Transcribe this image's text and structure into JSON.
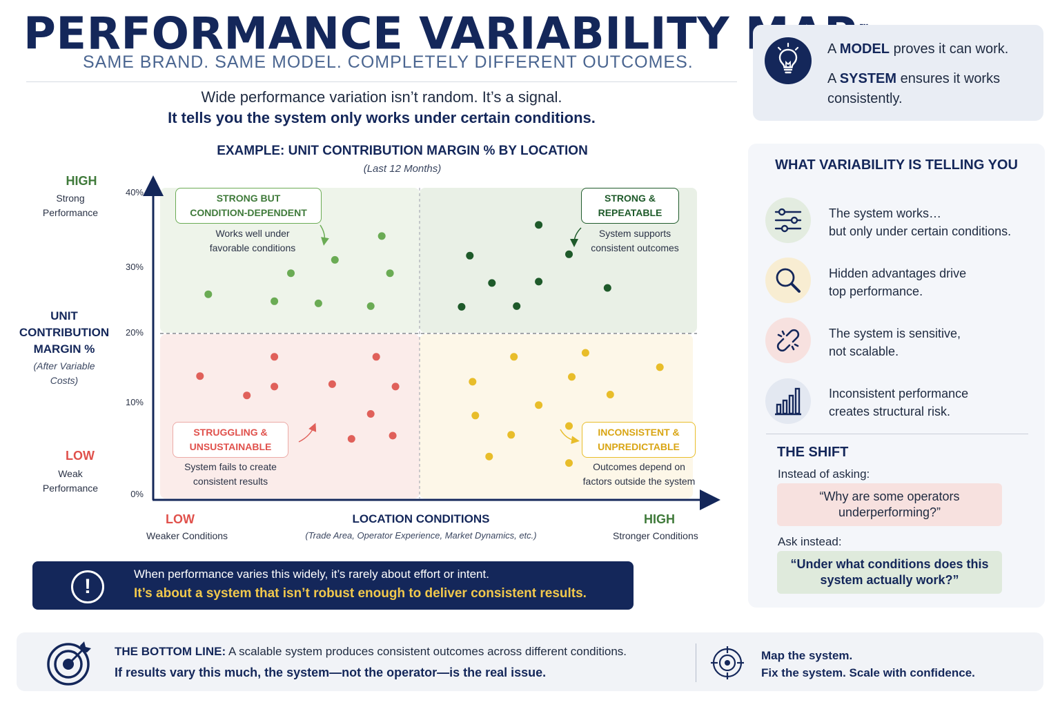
{
  "header": {
    "title": "PERFORMANCE VARIABILITY MAP",
    "tm": "™",
    "subtitle": "SAME BRAND. SAME MODEL. COMPLETELY DIFFERENT OUTCOMES.",
    "intro_line1": "Wide performance variation isn’t random. It’s a signal.",
    "intro_line2": "It tells you the system only works under certain conditions."
  },
  "model_box": {
    "icon": "lightbulb-icon",
    "line1_prefix": "A ",
    "line1_bold": "MODEL",
    "line1_suffix": " proves it can work.",
    "line2_prefix": "A ",
    "line2_bold": "SYSTEM",
    "line2_suffix": " ensures it works",
    "line2_cont": "consistently."
  },
  "y_axis": {
    "high_label": "HIGH",
    "high_sub1": "Strong",
    "high_sub2": "Performance",
    "low_label": "LOW",
    "low_sub1": "Weak",
    "low_sub2": "Performance",
    "main1": "UNIT",
    "main2": "CONTRIBUTION",
    "main3": "MARGIN %",
    "main_sub1": "(After Variable",
    "main_sub2": "Costs)"
  },
  "x_axis": {
    "low_label": "LOW",
    "low_sub": "Weaker Conditions",
    "main": "LOCATION CONDITIONS",
    "main_sub": "(Trade Area, Operator Experience, Market Dynamics, etc.)",
    "high_label": "HIGH",
    "high_sub": "Stronger Conditions"
  },
  "quadrants": {
    "top_left": {
      "label1": "STRONG BUT",
      "label2": "CONDITION-DEPENDENT",
      "desc1": "Works well under",
      "desc2": "favorable conditions"
    },
    "top_right": {
      "label1": "STRONG &",
      "label2": "REPEATABLE",
      "desc1": "System supports",
      "desc2": "consistent outcomes"
    },
    "bottom_left": {
      "label1": "STRUGGLING &",
      "label2": "UNSUSTAINABLE",
      "desc1": "System fails to create",
      "desc2": "consistent results"
    },
    "bottom_right": {
      "label1": "INCONSISTENT &",
      "label2": "UNPREDICTABLE",
      "desc1": "Outcomes depend on",
      "desc2": "factors outside the system"
    }
  },
  "chart_data": {
    "type": "scatter",
    "title": "EXAMPLE: UNIT CONTRIBUTION MARGIN % BY LOCATION",
    "subtitle": "(Last 12 Months)",
    "xlabel": "LOCATION CONDITIONS",
    "ylabel": "UNIT CONTRIBUTION MARGIN %",
    "ylim": [
      0,
      40
    ],
    "xlim": [
      0,
      100
    ],
    "y_ticks": [
      "40%",
      "30%",
      "20%",
      "10%",
      "0%"
    ],
    "y_tick_values": [
      40,
      30,
      20,
      10,
      0
    ],
    "y_divider": 20,
    "x_divider": 50,
    "grid": false,
    "series": [
      {
        "color": "#6aab54",
        "points": [
          [
            10,
            25.6
          ],
          [
            22,
            24.6
          ],
          [
            25,
            28.6
          ],
          [
            30,
            24.3
          ],
          [
            33,
            30.5
          ],
          [
            39.5,
            23.9
          ],
          [
            41.5,
            33.9
          ],
          [
            43,
            28.6
          ]
        ]
      },
      {
        "color": "#1e5a2a",
        "points": [
          [
            56,
            23.8
          ],
          [
            57.5,
            31.1
          ],
          [
            61.5,
            27.2
          ],
          [
            66,
            23.9
          ],
          [
            70,
            35.5
          ],
          [
            70,
            27.4
          ],
          [
            75.5,
            31.3
          ],
          [
            82.5,
            26.5
          ]
        ]
      },
      {
        "color": "#e0605a",
        "points": [
          [
            8.5,
            14.7
          ],
          [
            17,
            12.3
          ],
          [
            22,
            13.4
          ],
          [
            22,
            17.1
          ],
          [
            32.5,
            13.7
          ],
          [
            36,
            6.9
          ],
          [
            39.5,
            10.0
          ],
          [
            40.5,
            17.1
          ],
          [
            43.5,
            7.3
          ],
          [
            44,
            13.4
          ]
        ]
      },
      {
        "color": "#e8bd2a",
        "points": [
          [
            58,
            14.0
          ],
          [
            58.5,
            9.8
          ],
          [
            61,
            4.7
          ],
          [
            65,
            7.4
          ],
          [
            65.5,
            17.1
          ],
          [
            70,
            11.1
          ],
          [
            75.5,
            8.5
          ],
          [
            75.5,
            3.9
          ],
          [
            76,
            14.6
          ],
          [
            78.5,
            17.6
          ],
          [
            83,
            12.4
          ],
          [
            92,
            15.8
          ]
        ]
      }
    ]
  },
  "banner": {
    "icon": "exclamation-icon",
    "line1": "When performance varies this widely, it’s rarely about effort or intent.",
    "line2": "It’s about a system that isn’t robust enough to deliver consistent results."
  },
  "right_panel": {
    "title": "WHAT VARIABILITY IS TELLING YOU",
    "items": [
      {
        "icon": "sliders-icon",
        "line1": "The system works…",
        "line2": "but only under certain conditions.",
        "bg": "#e3ece0",
        "color": "#14275a"
      },
      {
        "icon": "magnifier-icon",
        "line1": "Hidden advantages drive",
        "line2": "top performance.",
        "bg": "#f8edd2",
        "color": "#14275a"
      },
      {
        "icon": "broken-link-icon",
        "line1": "The system is sensitive,",
        "line2": "not scalable.",
        "bg": "#f7e1df",
        "color": "#14275a"
      },
      {
        "icon": "bar-chart-icon",
        "line1": "Inconsistent performance",
        "line2": "creates structural risk.",
        "bg": "#e3e8f1",
        "color": "#14275a"
      }
    ],
    "shift_title": "THE SHIFT",
    "shift_ask": "Instead of asking:",
    "shift_q1": "“Why are some operators underperforming?”",
    "shift_instead": "Ask instead:",
    "shift_q2": "“Under what conditions does this system actually work?”"
  },
  "bottom_line": {
    "icon_left": "target-arrow-icon",
    "label": "THE BOTTOM LINE:",
    "line1": " A scalable system produces consistent outcomes across different conditions.",
    "line2": "If results vary this much, the system—not the operator—is the real issue.",
    "icon_right": "crosshair-icon",
    "right1": "Map the system.",
    "right2": "Fix the system. Scale with confidence."
  }
}
